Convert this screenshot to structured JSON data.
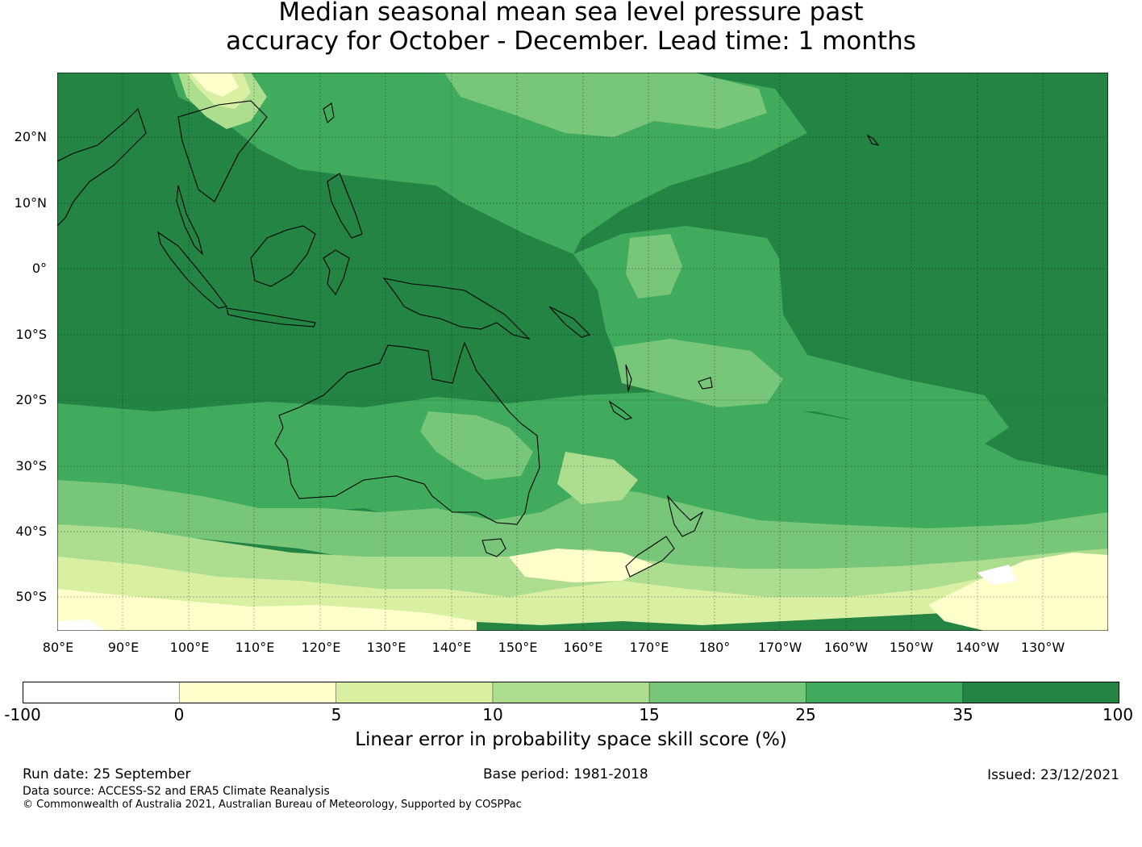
{
  "title": {
    "line1": "Median seasonal mean sea level pressure past",
    "line2": "accuracy for October - December. Lead time: 1 months"
  },
  "map": {
    "lat_labels": [
      "20°N",
      "10°N",
      "0°",
      "10°S",
      "20°S",
      "30°S",
      "40°S",
      "50°S"
    ],
    "lon_labels": [
      "80°E",
      "90°E",
      "100°E",
      "110°E",
      "120°E",
      "130°E",
      "140°E",
      "150°E",
      "160°E",
      "170°E",
      "180°",
      "170°W",
      "160°W",
      "150°W",
      "140°W",
      "130°W"
    ],
    "extent": {
      "lon_min": 80,
      "lon_max": 240,
      "lat_min": -55,
      "lat_max": 30
    }
  },
  "colorbar": {
    "ticks": [
      "-100",
      "0",
      "5",
      "10",
      "15",
      "25",
      "35",
      "100"
    ],
    "colors": [
      "#ffffff",
      "#ffffcc",
      "#d9f0a3",
      "#addd8e",
      "#78c679",
      "#41ab5d",
      "#238443"
    ],
    "label": "Linear error in probability space skill score (%)"
  },
  "footer": {
    "run_date": "Run date: 25 September",
    "base_period": "Base period: 1981-2018",
    "issued": "Issued: 23/12/2021",
    "data_source": "Data source: ACCESS-S2 and ERA5 Climate Reanalysis",
    "copyright": "© Commonwealth of Australia 2021, Australian Bureau of Meteorology, Supported by COSPPac"
  }
}
